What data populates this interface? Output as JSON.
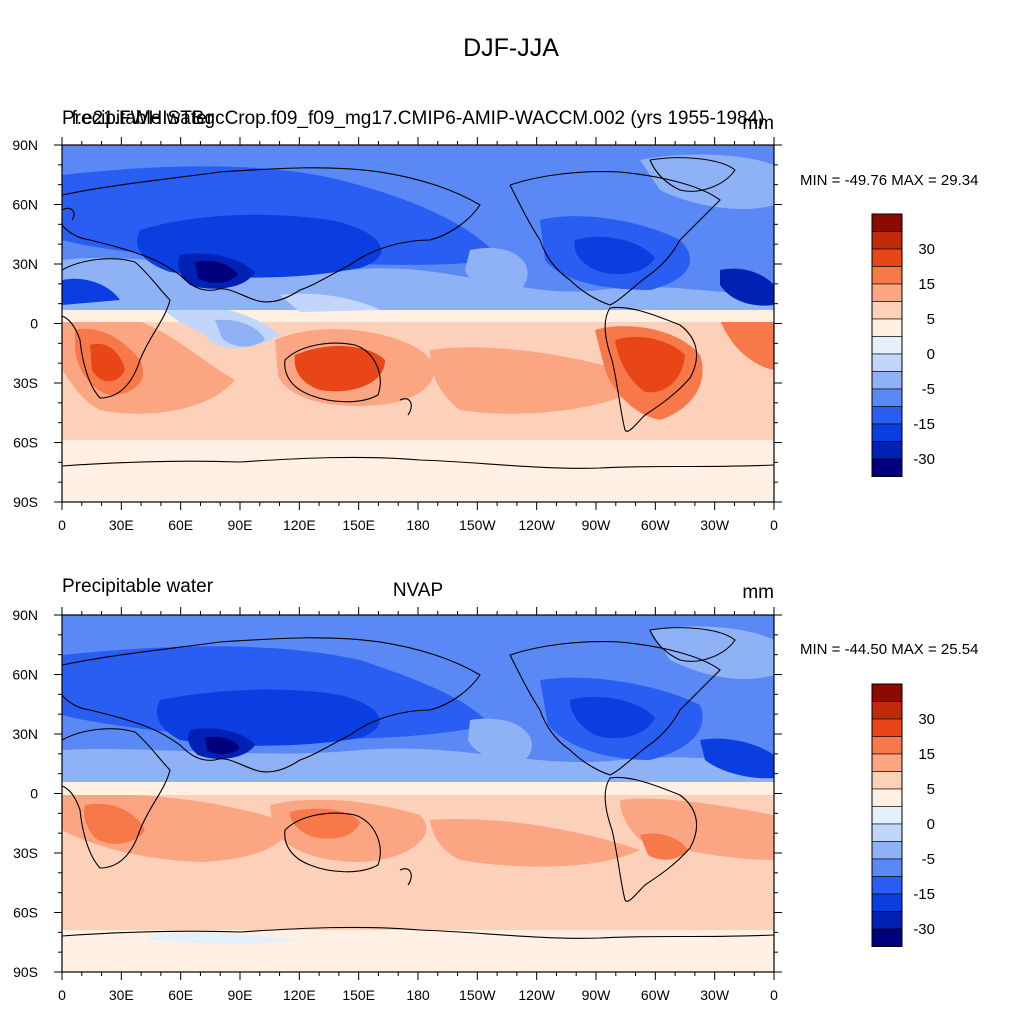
{
  "figure": {
    "title": "DJF-JJA",
    "palette": [
      "#00007f",
      "#0022b4",
      "#0a3ee0",
      "#2a5ef2",
      "#5a89f5",
      "#8fb2f7",
      "#c2d6fb",
      "#e6f0fd",
      "#fff0e3",
      "#fdd1b9",
      "#fba582",
      "#f77848",
      "#e84518",
      "#c02a08",
      "#8c0a00"
    ]
  },
  "chart_data": [
    {
      "type": "heatmap",
      "subtitle_left": "Precipitable water",
      "subtitle_overlap": "f.e21.FWHISTBgcCrop.f09_f09_mg17.CMIP6-AMIP-WACCM.002 (yrs 1955-1984)",
      "units": "mm",
      "stats": "MIN = -49.76 MAX =  29.34",
      "x_ticks": [
        "0",
        "30E",
        "60E",
        "90E",
        "120E",
        "150E",
        "180",
        "150W",
        "120W",
        "90W",
        "60W",
        "30W",
        "0"
      ],
      "y_ticks": [
        "90N",
        "60N",
        "30N",
        "0",
        "30S",
        "60S",
        "90S"
      ],
      "xlim": [
        0,
        360
      ],
      "ylim": [
        -90,
        90
      ],
      "colorbar_labels": [
        "30",
        "15",
        "5",
        "0",
        "-5",
        "-15",
        "-30"
      ],
      "field_min": -49.76,
      "field_max": 29.34
    },
    {
      "type": "heatmap",
      "subtitle_left": "Precipitable water",
      "subtitle_center": "NVAP",
      "units": "mm",
      "stats": "MIN = -44.50 MAX =  25.54",
      "x_ticks": [
        "0",
        "30E",
        "60E",
        "90E",
        "120E",
        "150E",
        "180",
        "150W",
        "120W",
        "90W",
        "60W",
        "30W",
        "0"
      ],
      "y_ticks": [
        "90N",
        "60N",
        "30N",
        "0",
        "30S",
        "60S",
        "90S"
      ],
      "xlim": [
        0,
        360
      ],
      "ylim": [
        -90,
        90
      ],
      "colorbar_labels": [
        "30",
        "15",
        "5",
        "0",
        "-5",
        "-15",
        "-30"
      ],
      "field_min": -44.5,
      "field_max": 25.54
    }
  ]
}
